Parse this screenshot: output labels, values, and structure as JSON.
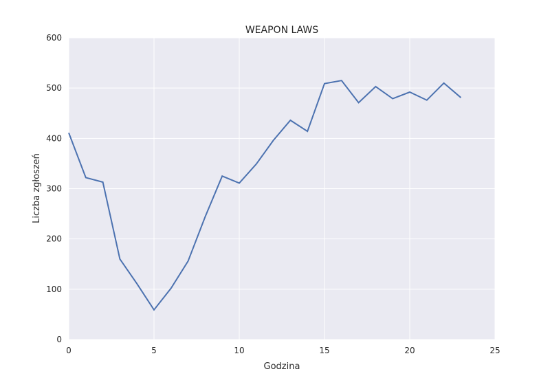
{
  "chart_data": {
    "type": "line",
    "title": "WEAPON LAWS",
    "xlabel": "Godzina",
    "ylabel": "Liczba zgłoszeń",
    "xlim": [
      0,
      25
    ],
    "ylim": [
      0,
      600
    ],
    "xticks": [
      0,
      5,
      10,
      15,
      20,
      25
    ],
    "yticks": [
      0,
      100,
      200,
      300,
      400,
      500,
      600
    ],
    "grid": true,
    "colors": {
      "background": "#eaeaf2",
      "grid": "#ffffff",
      "line": "#4c72b0"
    },
    "series": [
      {
        "x": [
          0,
          1,
          2,
          3,
          4,
          5,
          6,
          7,
          8,
          9,
          10,
          11,
          12,
          13,
          14,
          15,
          16,
          17,
          18,
          19,
          20,
          21,
          22,
          23
        ],
        "y": [
          411,
          322,
          313,
          160,
          111,
          59,
          102,
          156,
          244,
          325,
          311,
          349,
          396,
          436,
          414,
          509,
          515,
          471,
          503,
          479,
          492,
          476,
          510,
          481
        ]
      }
    ]
  }
}
